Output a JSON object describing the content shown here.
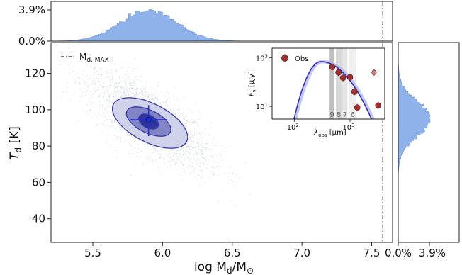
{
  "chart_data": [
    {
      "id": "main",
      "type": "scatter",
      "xlabel_main": "log  M",
      "xlabel_sub": "d",
      "xlabel_tail": "/M",
      "xlabel_sun": "⊙",
      "ylabel_main": "T",
      "ylabel_sub": "d",
      "ylabel_tail": " [K]",
      "xlim": [
        5.2,
        7.65
      ],
      "ylim": [
        27,
        137
      ],
      "xticks": [
        "5.5",
        "6.0",
        "6.5",
        "7.0",
        "7.5"
      ],
      "yticks": [
        "40",
        "60",
        "80",
        "100",
        "120"
      ],
      "legend": {
        "label_main": "M",
        "label_sub": "d, MAX"
      },
      "md_max": 7.58,
      "best_fit": {
        "x": 5.9,
        "y": 94.5,
        "xerr": 0.13,
        "yerr": [
          9,
          8
        ]
      },
      "contours": [
        {
          "level": "outer",
          "color": "#c9cbe8"
        },
        {
          "level": "middle",
          "color": "#7c80c4"
        },
        {
          "level": "inner",
          "color": "#2a2f9a"
        }
      ],
      "colors": {
        "contour_edge": "#3a3aa0",
        "point": "#1a2fd6",
        "errorbar": "#2233cc",
        "scatter": "#9aa0cc"
      }
    },
    {
      "id": "top_hist",
      "type": "bar",
      "yticks": [
        "3.9%",
        "0.0%"
      ],
      "peak_x": 5.9,
      "color": "#8fb2ea"
    },
    {
      "id": "right_hist",
      "type": "bar",
      "xticks": [
        "0.0%",
        "3.9%"
      ],
      "peak_y": 95,
      "color": "#8fb2ea"
    },
    {
      "id": "inset_sed",
      "type": "line",
      "xlabel_main": "λ",
      "xlabel_sub": "obs",
      "xlabel_tail": " [μm]",
      "ylabel_main": "F",
      "ylabel_sub": "ν",
      "ylabel_tail": " [μJy]",
      "xticks": [
        "10",
        "10"
      ],
      "xtick_exps": [
        "2",
        "3"
      ],
      "yticks": [
        "10",
        "10"
      ],
      "ytick_exps": [
        "3",
        "1"
      ],
      "legend": "Obs",
      "bands": [
        "9",
        "8",
        "7",
        "6"
      ],
      "obs": [
        {
          "x": 480,
          "y": 420
        },
        {
          "x": 620,
          "y": 250
        },
        {
          "x": 750,
          "y": 150
        },
        {
          "x": 1000,
          "y": 160
        },
        {
          "x": 1200,
          "y": 40
        },
        {
          "x": 1350,
          "y": 9
        },
        {
          "x": 2700,
          "y": 250
        },
        {
          "x": 3200,
          "y": 11
        }
      ],
      "colors": {
        "model": "#3b2fb0",
        "band": "#bfbfbf",
        "obs": "#a03030"
      }
    }
  ]
}
